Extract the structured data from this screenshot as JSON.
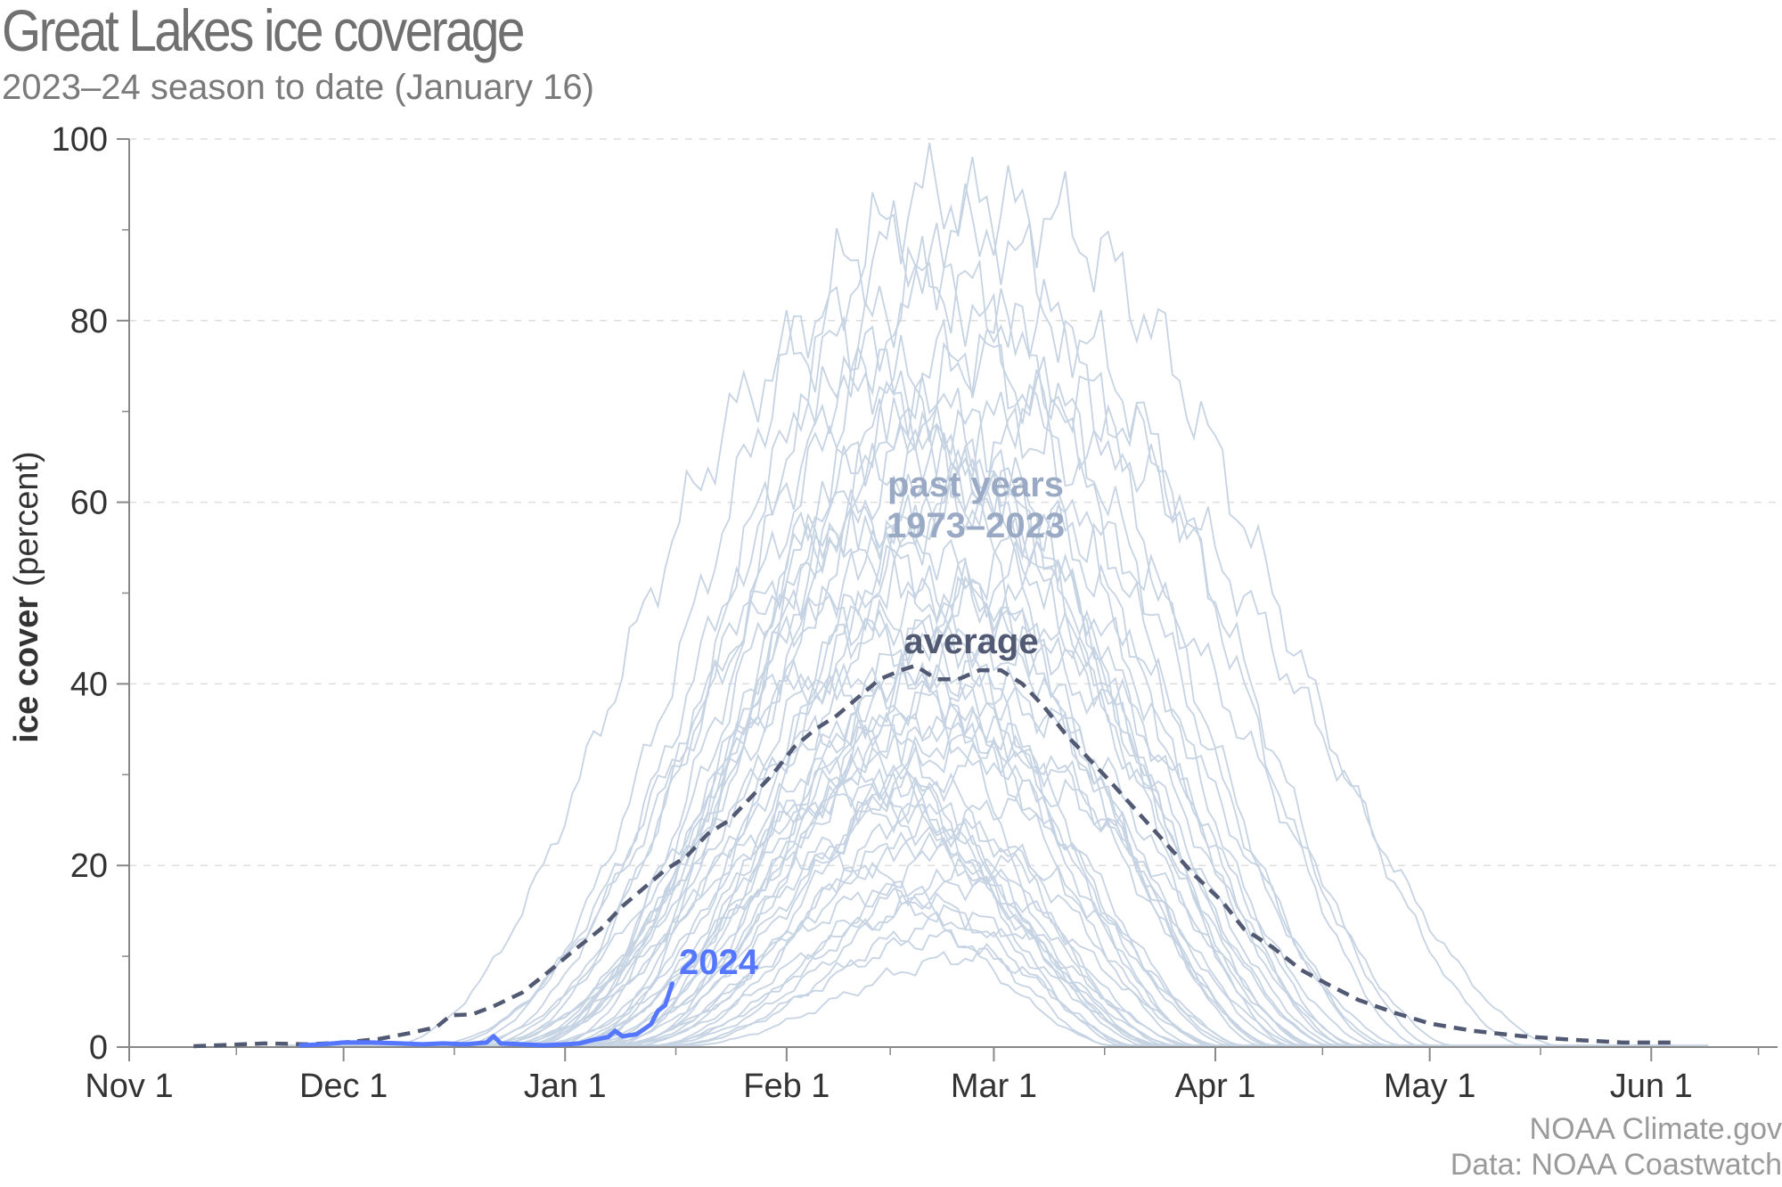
{
  "header": {
    "title": "Great Lakes ice coverage",
    "subtitle": "2023–24 season to date (January 16)"
  },
  "credits": {
    "line1": "NOAA Climate.gov",
    "line2": "Data: NOAA Coastwatch"
  },
  "annotations": {
    "past_years_line1": "past years",
    "past_years_line2": "1973–2023",
    "average": "average",
    "current": "2024"
  },
  "colors": {
    "past_years": "#c6d3e3",
    "past_years_label": "#9aaac4",
    "average": "#515a72",
    "current": "#5577ff",
    "grid": "#dddddd",
    "axis": "#888888"
  },
  "chart_data": {
    "type": "line",
    "title": "Great Lakes ice coverage",
    "subtitle": "2023–24 season to date (January 16)",
    "xlabel": "",
    "ylabel_bold": "ice cover",
    "ylabel_rest": " (percent)",
    "ylim": [
      0,
      100
    ],
    "yticks": [
      0,
      20,
      40,
      60,
      80,
      100
    ],
    "xlim": [
      "Nov 1",
      "Jun 10"
    ],
    "xticks": [
      "Nov 1",
      "Dec 1",
      "Jan 1",
      "Feb 1",
      "Mar 1",
      "Apr 1",
      "May 1",
      "Jun 1"
    ],
    "grid": "horizontal dashed",
    "x_unit": "calendar date (Nov 1 – Jun 10)",
    "series": [
      {
        "name": "2024",
        "style": "solid",
        "points": [
          [
            "Nov 25",
            0.2
          ],
          [
            "Nov 28",
            0.3
          ],
          [
            "Dec 1",
            0.5
          ],
          [
            "Dec 5",
            0.5
          ],
          [
            "Dec 9",
            0.4
          ],
          [
            "Dec 12",
            0.3
          ],
          [
            "Dec 15",
            0.4
          ],
          [
            "Dec 18",
            0.3
          ],
          [
            "Dec 21",
            0.5
          ],
          [
            "Dec 22",
            1.2
          ],
          [
            "Dec 23",
            0.4
          ],
          [
            "Dec 26",
            0.3
          ],
          [
            "Dec 29",
            0.2
          ],
          [
            "Jan 1",
            0.3
          ],
          [
            "Jan 3",
            0.4
          ],
          [
            "Jan 5",
            0.8
          ],
          [
            "Jan 7",
            1.1
          ],
          [
            "Jan 8",
            1.8
          ],
          [
            "Jan 9",
            1.2
          ],
          [
            "Jan 11",
            1.4
          ],
          [
            "Jan 13",
            2.5
          ],
          [
            "Jan 14",
            4.0
          ],
          [
            "Jan 15",
            4.6
          ],
          [
            "Jan 16",
            7.0
          ]
        ]
      },
      {
        "name": "average",
        "style": "dashed",
        "points": [
          [
            "Nov 10",
            0.1
          ],
          [
            "Nov 20",
            0.4
          ],
          [
            "Nov 26",
            0.3
          ],
          [
            "Dec 1",
            0.5
          ],
          [
            "Dec 6",
            0.9
          ],
          [
            "Dec 10",
            1.5
          ],
          [
            "Dec 14",
            2.2
          ],
          [
            "Dec 16",
            3.5
          ],
          [
            "Dec 19",
            3.6
          ],
          [
            "Dec 22",
            4.5
          ],
          [
            "Dec 26",
            6.0
          ],
          [
            "Dec 30",
            8.5
          ],
          [
            "Jan 2",
            10.5
          ],
          [
            "Jan 6",
            13.0
          ],
          [
            "Jan 9",
            15.5
          ],
          [
            "Jan 12",
            17.5
          ],
          [
            "Jan 15",
            19.5
          ],
          [
            "Jan 18",
            21.0
          ],
          [
            "Jan 21",
            23.5
          ],
          [
            "Jan 24",
            25.0
          ],
          [
            "Jan 27",
            27.5
          ],
          [
            "Jan 30",
            30.0
          ],
          [
            "Feb 2",
            33.0
          ],
          [
            "Feb 5",
            35.0
          ],
          [
            "Feb 8",
            36.5
          ],
          [
            "Feb 11",
            38.5
          ],
          [
            "Feb 14",
            40.5
          ],
          [
            "Feb 17",
            41.5
          ],
          [
            "Feb 19",
            42.0
          ],
          [
            "Feb 22",
            40.5
          ],
          [
            "Feb 25",
            40.5
          ],
          [
            "Feb 28",
            41.5
          ],
          [
            "Mar 2",
            41.5
          ],
          [
            "Mar 5",
            40.0
          ],
          [
            "Mar 8",
            37.5
          ],
          [
            "Mar 11",
            34.5
          ],
          [
            "Mar 14",
            32.0
          ],
          [
            "Mar 17",
            29.5
          ],
          [
            "Mar 21",
            26.0
          ],
          [
            "Mar 25",
            22.5
          ],
          [
            "Mar 29",
            19.0
          ],
          [
            "Apr 2",
            16.0
          ],
          [
            "Apr 5",
            13.0
          ],
          [
            "Apr 9",
            11.0
          ],
          [
            "Apr 13",
            8.5
          ],
          [
            "Apr 17",
            6.8
          ],
          [
            "Apr 21",
            5.2
          ],
          [
            "Apr 26",
            3.8
          ],
          [
            "May 1",
            2.6
          ],
          [
            "May 7",
            1.8
          ],
          [
            "May 14",
            1.2
          ],
          [
            "May 21",
            0.8
          ],
          [
            "May 28",
            0.5
          ],
          [
            "Jun 1",
            0.5
          ],
          [
            "Jun 4",
            0.5
          ]
        ]
      },
      {
        "name": "past years 1973–2023",
        "style": "thin",
        "curves": [
          {
            "start": "Dec 15",
            "peak": "Feb 15",
            "value": 88,
            "end": "Apr 20"
          },
          {
            "start": "Dec 20",
            "peak": "Feb 22",
            "value": 94,
            "end": "Apr 25"
          },
          {
            "start": "Dec 10",
            "peak": "Mar 5",
            "value": 92,
            "end": "May 15"
          },
          {
            "start": "Dec 18",
            "peak": "Mar 8",
            "value": 80,
            "end": "Apr 30"
          },
          {
            "start": "Dec 5",
            "peak": "Feb 5",
            "value": 77,
            "end": "Apr 10"
          },
          {
            "start": "Dec 25",
            "peak": "Feb 20",
            "value": 70,
            "end": "Apr 15"
          },
          {
            "start": "Dec 20",
            "peak": "Mar 10",
            "value": 68,
            "end": "May 20"
          },
          {
            "start": "Dec 28",
            "peak": "Feb 28",
            "value": 60,
            "end": "Apr 12"
          },
          {
            "start": "Jan 1",
            "peak": "Feb 10",
            "value": 55,
            "end": "Apr 1"
          },
          {
            "start": "Dec 22",
            "peak": "Feb 25",
            "value": 50,
            "end": "Apr 8"
          },
          {
            "start": "Dec 30",
            "peak": "Mar 2",
            "value": 45,
            "end": "Apr 18"
          },
          {
            "start": "Jan 5",
            "peak": "Feb 15",
            "value": 42,
            "end": "Mar 30"
          },
          {
            "start": "Dec 26",
            "peak": "Feb 18",
            "value": 38,
            "end": "Apr 5"
          },
          {
            "start": "Jan 2",
            "peak": "Mar 1",
            "value": 34,
            "end": "Apr 10"
          },
          {
            "start": "Jan 8",
            "peak": "Feb 12",
            "value": 30,
            "end": "Mar 25"
          },
          {
            "start": "Dec 20",
            "peak": "Feb 8",
            "value": 27,
            "end": "Mar 28"
          },
          {
            "start": "Jan 4",
            "peak": "Feb 24",
            "value": 24,
            "end": "Apr 2"
          },
          {
            "start": "Jan 10",
            "peak": "Mar 3",
            "value": 20,
            "end": "Apr 6"
          },
          {
            "start": "Jan 6",
            "peak": "Feb 16",
            "value": 17,
            "end": "Mar 22"
          },
          {
            "start": "Jan 12",
            "peak": "Feb 26",
            "value": 14,
            "end": "Mar 30"
          },
          {
            "start": "Dec 24",
            "peak": "Feb 20",
            "value": 65,
            "end": "Apr 22"
          },
          {
            "start": "Dec 12",
            "peak": "Feb 12",
            "value": 58,
            "end": "Apr 14"
          },
          {
            "start": "Dec 16",
            "peak": "Mar 12",
            "value": 72,
            "end": "May 2"
          },
          {
            "start": "Jan 3",
            "peak": "Feb 6",
            "value": 48,
            "end": "Mar 26"
          },
          {
            "start": "Dec 27",
            "peak": "Mar 6",
            "value": 52,
            "end": "Apr 20"
          },
          {
            "start": "Jan 7",
            "peak": "Feb 21",
            "value": 36,
            "end": "Apr 1"
          },
          {
            "start": "Dec 29",
            "peak": "Feb 3",
            "value": 40,
            "end": "Mar 20"
          },
          {
            "start": "Jan 9",
            "peak": "Mar 9",
            "value": 28,
            "end": "Apr 16"
          },
          {
            "start": "Dec 14",
            "peak": "Feb 27",
            "value": 62,
            "end": "Apr 28"
          },
          {
            "start": "Jan 11",
            "peak": "Feb 19",
            "value": 22,
            "end": "Mar 24"
          },
          {
            "start": "Dec 21",
            "peak": "Feb 14",
            "value": 46,
            "end": "Apr 4"
          },
          {
            "start": "Jan 4",
            "peak": "Mar 4",
            "value": 32,
            "end": "Apr 12"
          },
          {
            "start": "Dec 19",
            "peak": "Feb 9",
            "value": 35,
            "end": "Mar 29"
          },
          {
            "start": "Jan 13",
            "peak": "Feb 23",
            "value": 12,
            "end": "Mar 18"
          },
          {
            "start": "Dec 23",
            "peak": "Mar 7",
            "value": 44,
            "end": "Apr 24"
          },
          {
            "start": "Jan 2",
            "peak": "Feb 17",
            "value": 26,
            "end": "Mar 27"
          },
          {
            "start": "Dec 17",
            "peak": "Feb 13",
            "value": 74,
            "end": "Apr 18"
          },
          {
            "start": "Jan 5",
            "peak": "Feb 25",
            "value": 18,
            "end": "Apr 3"
          },
          {
            "start": "Dec 31",
            "peak": "Feb 11",
            "value": 31,
            "end": "Mar 23"
          },
          {
            "start": "Jan 8",
            "peak": "Mar 2",
            "value": 39,
            "end": "Apr 9"
          },
          {
            "start": "Dec 26",
            "peak": "Feb 7",
            "value": 56,
            "end": "Apr 6"
          },
          {
            "start": "Jan 14",
            "peak": "Feb 28",
            "value": 10,
            "end": "Mar 21"
          },
          {
            "start": "Dec 18",
            "peak": "Feb 22",
            "value": 84,
            "end": "Apr 26"
          },
          {
            "start": "Jan 1",
            "peak": "Mar 11",
            "value": 57,
            "end": "May 5"
          },
          {
            "start": "Dec 24",
            "peak": "Feb 16",
            "value": 67,
            "end": "Apr 16"
          },
          {
            "start": "Jan 6",
            "peak": "Feb 4",
            "value": 21,
            "end": "Mar 19"
          },
          {
            "start": "Dec 28",
            "peak": "Mar 1",
            "value": 49,
            "end": "Apr 19"
          },
          {
            "start": "Jan 10",
            "peak": "Feb 20",
            "value": 15,
            "end": "Mar 26"
          },
          {
            "start": "Dec 22",
            "peak": "Feb 26",
            "value": 76,
            "end": "Apr 21"
          },
          {
            "start": "Jan 3",
            "peak": "Feb 9",
            "value": 29,
            "end": "Mar 25"
          },
          {
            "start": "Dec 30",
            "peak": "Mar 5",
            "value": 37,
            "end": "Apr 14"
          }
        ]
      }
    ]
  }
}
